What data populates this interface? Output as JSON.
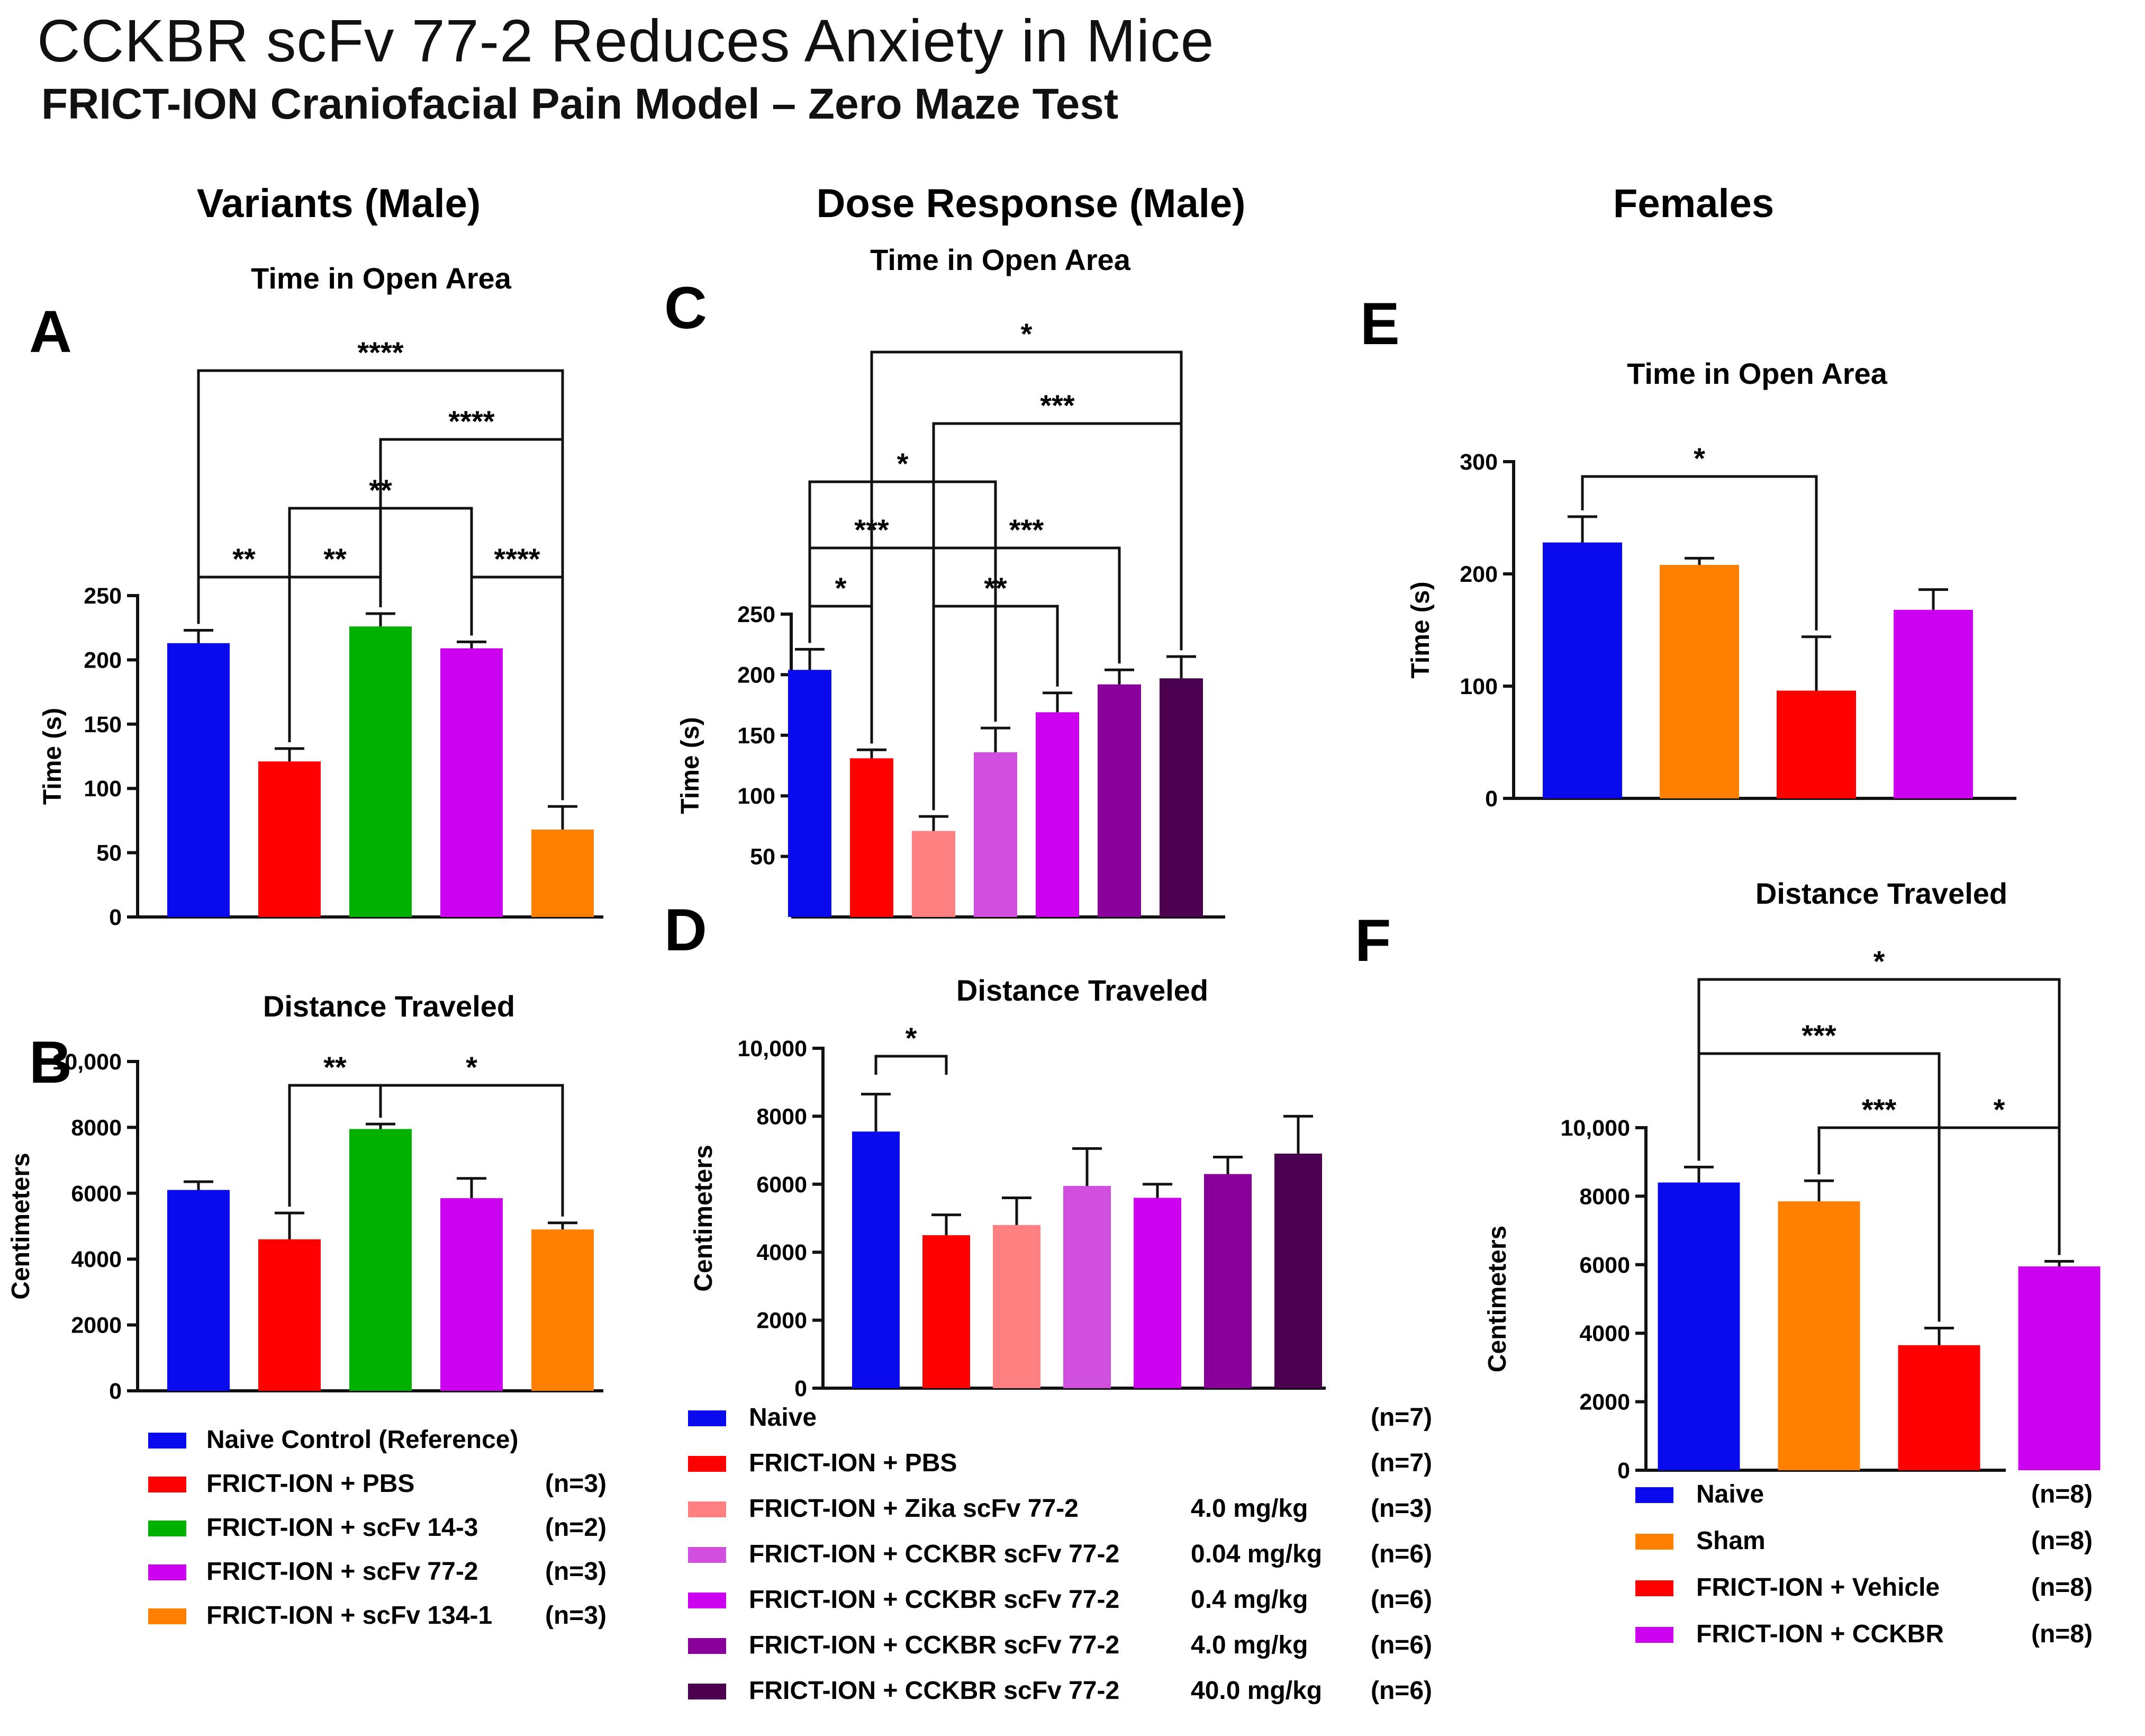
{
  "figure": {
    "title": "CCKBR scFv 77-2 Reduces Anxiety in Mice",
    "subtitle": "FRICT-ION Craniofacial Pain Model – Zero Maze Test"
  },
  "columns": [
    "Variants (Male)",
    "Dose Response (Male)",
    "Females"
  ],
  "colors": {
    "blue": "#0a0aee",
    "red": "#ff0000",
    "green": "#00b000",
    "purple": "#cc00ee",
    "orange": "#ff8000",
    "pink": "#ff8080",
    "lilac": "#d050dd",
    "violet": "#880099",
    "darkviolet": "#4a004f"
  },
  "legends": {
    "A": [
      {
        "label": "Naive Control (Reference)",
        "dose": "",
        "n": "",
        "color": "#0a0aee"
      },
      {
        "label": "FRICT-ION + PBS",
        "dose": "",
        "n": "(n=3)",
        "color": "#ff0000"
      },
      {
        "label": "FRICT-ION + scFv 14-3",
        "dose": "",
        "n": "(n=2)",
        "color": "#00b000"
      },
      {
        "label": "FRICT-ION + scFv 77-2",
        "dose": "",
        "n": "(n=3)",
        "color": "#cc00ee"
      },
      {
        "label": "FRICT-ION + scFv 134-1",
        "dose": "",
        "n": "(n=3)",
        "color": "#ff8000"
      }
    ],
    "C": [
      {
        "label": "Naive",
        "dose": "",
        "n": "(n=7)",
        "color": "#0a0aee"
      },
      {
        "label": "FRICT-ION + PBS",
        "dose": "",
        "n": "(n=7)",
        "color": "#ff0000"
      },
      {
        "label": "FRICT-ION + Zika scFv 77-2",
        "dose": "4.0 mg/kg",
        "n": "(n=3)",
        "color": "#ff8080"
      },
      {
        "label": "FRICT-ION + CCKBR scFv 77-2",
        "dose": "0.04 mg/kg",
        "n": "(n=6)",
        "color": "#d050dd"
      },
      {
        "label": "FRICT-ION + CCKBR scFv 77-2",
        "dose": "0.4 mg/kg",
        "n": "(n=6)",
        "color": "#cc00ee"
      },
      {
        "label": "FRICT-ION + CCKBR scFv 77-2",
        "dose": "4.0 mg/kg",
        "n": "(n=6)",
        "color": "#880099"
      },
      {
        "label": "FRICT-ION + CCKBR scFv 77-2",
        "dose": "40.0 mg/kg",
        "n": "(n=6)",
        "color": "#4a004f"
      }
    ],
    "E": [
      {
        "label": "Naive",
        "dose": "",
        "n": "(n=8)",
        "color": "#0a0aee"
      },
      {
        "label": "Sham",
        "dose": "",
        "n": "(n=8)",
        "color": "#ff8000"
      },
      {
        "label": "FRICT-ION + Vehicle",
        "dose": "",
        "n": "(n=8)",
        "color": "#ff0000"
      },
      {
        "label": "FRICT-ION + CCKBR",
        "dose": "",
        "n": "(n=8)",
        "color": "#cc00ee"
      }
    ]
  },
  "chart_data": [
    {
      "id": "A",
      "type": "bar",
      "panel_label": "A",
      "title": "Time in Open Area",
      "ylabel": "Time (s)",
      "ylim": [
        0,
        250
      ],
      "yticks": [
        0,
        50,
        100,
        150,
        200,
        250
      ],
      "values": [
        213,
        121,
        226,
        209,
        68
      ],
      "errors": [
        10,
        10,
        10,
        5,
        18
      ],
      "colors": [
        "#0a0aee",
        "#ff0000",
        "#00b000",
        "#cc00ee",
        "#ff8000"
      ],
      "brackets": [
        {
          "from": 0,
          "to": 1,
          "label": "**"
        },
        {
          "from": 1,
          "to": 2,
          "label": "**"
        },
        {
          "from": 3,
          "to": 4,
          "label": "****"
        },
        {
          "from": 1,
          "to": 3,
          "label": "**"
        },
        {
          "from": 2,
          "to": 4,
          "label": "****"
        },
        {
          "from": 0,
          "to": 4,
          "label": "****"
        }
      ]
    },
    {
      "id": "B",
      "type": "bar",
      "panel_label": "B",
      "title": "Distance Traveled",
      "ylabel": "Centimeters",
      "ylim": [
        0,
        10000
      ],
      "yticks": [
        0,
        2000,
        4000,
        6000,
        8000,
        10000
      ],
      "ytick_labels": [
        "0",
        "2000",
        "4000",
        "6000",
        "8000",
        "10,000"
      ],
      "values": [
        6100,
        4600,
        7950,
        5850,
        4900
      ],
      "errors": [
        250,
        800,
        150,
        600,
        200
      ],
      "colors": [
        "#0a0aee",
        "#ff0000",
        "#00b000",
        "#cc00ee",
        "#ff8000"
      ],
      "brackets": [
        {
          "from": 1,
          "to": 2,
          "label": "**"
        },
        {
          "from": 2,
          "to": 4,
          "label": "*"
        }
      ]
    },
    {
      "id": "C",
      "type": "bar",
      "panel_label": "C",
      "title": "Time in Open Area",
      "ylabel": "Time (s)",
      "ylim": [
        0,
        250
      ],
      "yticks": [
        50,
        100,
        150,
        200,
        250
      ],
      "values": [
        204,
        131,
        71,
        136,
        169,
        192,
        197
      ],
      "errors": [
        17,
        7,
        12,
        20,
        16,
        12,
        18
      ],
      "colors": [
        "#0a0aee",
        "#ff0000",
        "#ff8080",
        "#d050dd",
        "#cc00ee",
        "#880099",
        "#4a004f"
      ],
      "brackets": [
        {
          "from": 0,
          "to": 1,
          "label": "*"
        },
        {
          "from": 2,
          "to": 4,
          "label": "**"
        },
        {
          "from": 0,
          "to": 2,
          "label": "***"
        },
        {
          "from": 2,
          "to": 5,
          "label": "***"
        },
        {
          "from": 0,
          "to": 3,
          "label": "*"
        },
        {
          "from": 2,
          "to": 6,
          "label": "***"
        },
        {
          "from": 1,
          "to": 6,
          "label": "*"
        }
      ]
    },
    {
      "id": "D",
      "type": "bar",
      "panel_label": "D",
      "title": "Distance Traveled",
      "ylabel": "Centimeters",
      "ylim": [
        0,
        10000
      ],
      "yticks": [
        0,
        2000,
        4000,
        6000,
        8000,
        10000
      ],
      "ytick_labels": [
        "0",
        "2000",
        "4000",
        "6000",
        "8000",
        "10,000"
      ],
      "values": [
        7550,
        4500,
        4800,
        5950,
        5600,
        6300,
        6900
      ],
      "errors": [
        1100,
        600,
        800,
        1100,
        400,
        500,
        1100
      ],
      "colors": [
        "#0a0aee",
        "#ff0000",
        "#ff8080",
        "#d050dd",
        "#cc00ee",
        "#880099",
        "#4a004f"
      ],
      "brackets": [
        {
          "from": 0,
          "to": 1,
          "label": "*"
        }
      ]
    },
    {
      "id": "E",
      "type": "bar",
      "panel_label": "E",
      "title": "Time in Open Area",
      "ylabel": "Time (s)",
      "ylim": [
        0,
        300
      ],
      "yticks": [
        0,
        100,
        200,
        300
      ],
      "values": [
        228,
        208,
        96,
        168
      ],
      "errors": [
        23,
        6,
        48,
        18
      ],
      "colors": [
        "#0a0aee",
        "#ff8000",
        "#ff0000",
        "#cc00ee"
      ],
      "brackets": [
        {
          "from": 0,
          "to": 2,
          "label": "*"
        }
      ]
    },
    {
      "id": "F",
      "type": "bar",
      "panel_label": "F",
      "title": "Distance Traveled",
      "ylabel": "Centimeters",
      "ylim": [
        0,
        10000
      ],
      "yticks": [
        0,
        2000,
        4000,
        6000,
        8000,
        10000
      ],
      "ytick_labels": [
        "0",
        "2000",
        "4000",
        "6000",
        "8000",
        "10,000"
      ],
      "values": [
        8400,
        7850,
        3650,
        5950
      ],
      "errors": [
        450,
        600,
        500,
        150
      ],
      "colors": [
        "#0a0aee",
        "#ff8000",
        "#ff0000",
        "#cc00ee"
      ],
      "brackets": [
        {
          "from": 1,
          "to": 2,
          "label": "***"
        },
        {
          "from": 2,
          "to": 3,
          "label": "*"
        },
        {
          "from": 0,
          "to": 2,
          "label": "***"
        },
        {
          "from": 0,
          "to": 3,
          "label": "*"
        }
      ]
    }
  ]
}
